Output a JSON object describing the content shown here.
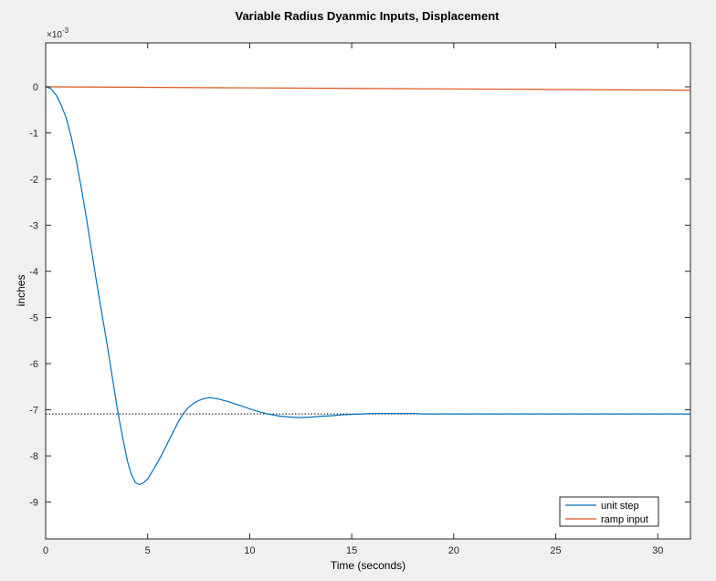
{
  "chart_data": {
    "type": "line",
    "title": "Variable Radius Dyanmic Inputs, Displacement",
    "xlabel": "Time (seconds)",
    "ylabel": "inches",
    "y_exponent_label": "×10",
    "y_exponent_power": "-3",
    "xlim": [
      0,
      31.6
    ],
    "ylim": [
      -9.8,
      0.95
    ],
    "xticks": [
      0,
      5,
      10,
      15,
      20,
      25,
      30
    ],
    "yticks": [
      0,
      -1,
      -2,
      -3,
      -4,
      -5,
      -6,
      -7,
      -8,
      -9
    ],
    "grid": false,
    "legend_position": "bottom-right",
    "series": [
      {
        "name": "unit step",
        "color": "#0072bd",
        "x": [
          0,
          0.25,
          0.5,
          0.75,
          1.0,
          1.25,
          1.5,
          1.75,
          2.0,
          2.25,
          2.5,
          2.75,
          3.0,
          3.25,
          3.5,
          3.75,
          4.0,
          4.2,
          4.4,
          4.6,
          4.8,
          5.0,
          5.25,
          5.5,
          5.75,
          6.0,
          6.25,
          6.5,
          6.75,
          7.0,
          7.25,
          7.5,
          7.75,
          8.0,
          8.25,
          8.5,
          8.75,
          9.0,
          9.25,
          9.5,
          9.75,
          10.0,
          10.5,
          11.0,
          11.5,
          12.0,
          12.5,
          13.0,
          13.5,
          14.0,
          14.5,
          15.0,
          15.5,
          16.0,
          16.5,
          17.0,
          17.5,
          18.0,
          18.5,
          19.0,
          20.0,
          22.0,
          25.0,
          28.0,
          31.6
        ],
        "y": [
          0,
          -0.04,
          -0.17,
          -0.38,
          -0.67,
          -1.08,
          -1.6,
          -2.2,
          -2.85,
          -3.55,
          -4.25,
          -4.9,
          -5.55,
          -6.25,
          -6.95,
          -7.55,
          -8.1,
          -8.4,
          -8.58,
          -8.62,
          -8.58,
          -8.5,
          -8.32,
          -8.13,
          -7.92,
          -7.7,
          -7.48,
          -7.26,
          -7.08,
          -6.95,
          -6.86,
          -6.8,
          -6.76,
          -6.74,
          -6.75,
          -6.77,
          -6.8,
          -6.83,
          -6.87,
          -6.9,
          -6.94,
          -6.98,
          -7.05,
          -7.1,
          -7.14,
          -7.16,
          -7.17,
          -7.16,
          -7.14,
          -7.13,
          -7.11,
          -7.1,
          -7.09,
          -7.08,
          -7.08,
          -7.08,
          -7.08,
          -7.08,
          -7.09,
          -7.09,
          -7.09,
          -7.09,
          -7.09,
          -7.09,
          -7.09
        ]
      },
      {
        "name": "ramp input",
        "color": "#d95319",
        "x": [
          0,
          31.6
        ],
        "y": [
          0,
          -0.075
        ]
      }
    ],
    "reference_line": {
      "y": -7.09,
      "style": "dotted",
      "color": "#000000"
    }
  }
}
